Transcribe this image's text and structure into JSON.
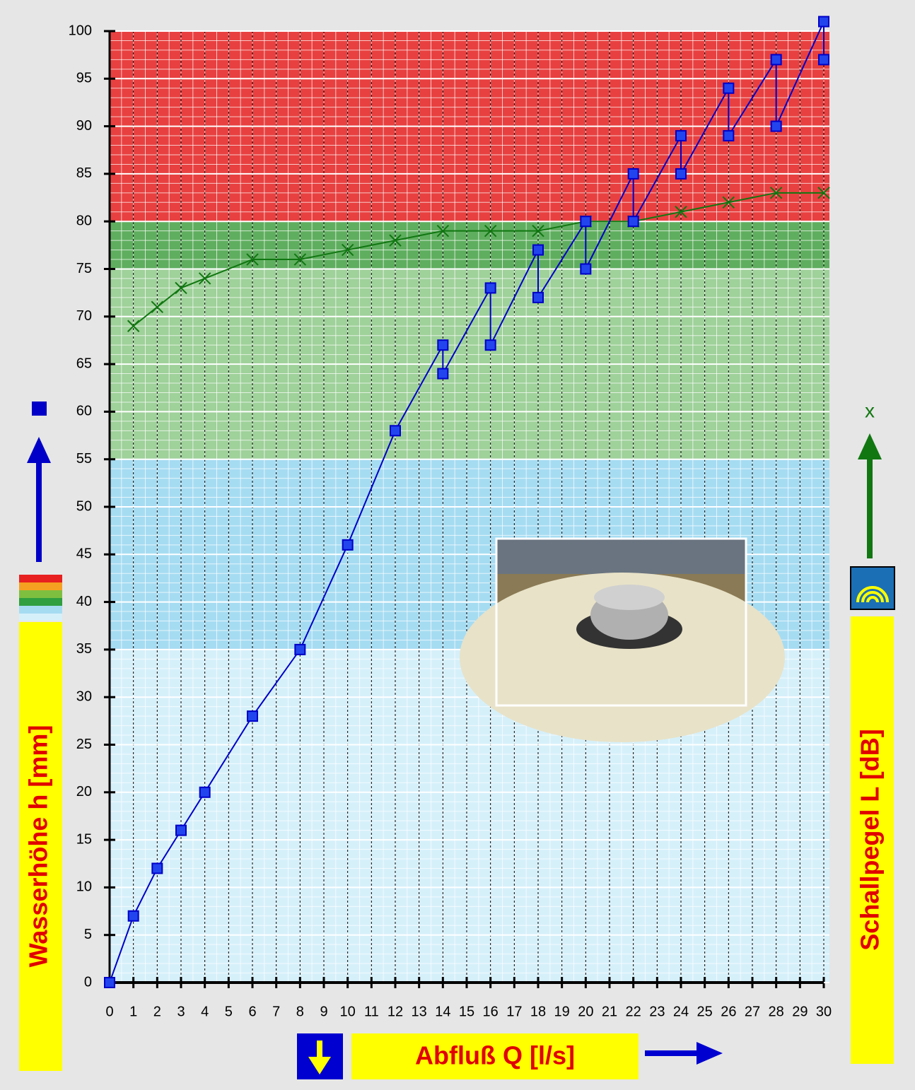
{
  "chart_data": {
    "type": "line",
    "x_label": "Abfluß Q [l/s]",
    "y_label": "Wasserhöhe h [mm]",
    "y2_label": "Schallpegel L [dB]",
    "y2_marker_label": "x",
    "xlim": [
      0,
      30
    ],
    "xticks": [
      0,
      1,
      2,
      3,
      4,
      5,
      6,
      7,
      8,
      9,
      10,
      11,
      12,
      13,
      14,
      15,
      16,
      17,
      18,
      19,
      20,
      21,
      22,
      23,
      24,
      25,
      26,
      27,
      28,
      29,
      30
    ],
    "ylim": [
      0,
      100
    ],
    "yticks": [
      0,
      5,
      10,
      15,
      20,
      25,
      30,
      35,
      40,
      45,
      50,
      55,
      60,
      65,
      70,
      75,
      80,
      85,
      90,
      95,
      100
    ],
    "grid": true,
    "bands": [
      {
        "from": 80,
        "to": 100,
        "color": "#e84040"
      },
      {
        "from": 75,
        "to": 80,
        "color": "#5fae5f"
      },
      {
        "from": 55,
        "to": 75,
        "color": "#9fd19a"
      },
      {
        "from": 35,
        "to": 55,
        "color": "#a6dcf2"
      },
      {
        "from": 0,
        "to": 35,
        "color": "#d6f0fa"
      }
    ],
    "series": [
      {
        "name": "Wasserhöhe h",
        "color": "#0000c8",
        "marker": "square",
        "x": [
          0,
          1,
          2,
          3,
          4,
          6,
          8,
          10,
          12,
          14,
          14,
          16,
          16,
          18,
          18,
          20,
          20,
          22,
          22,
          24,
          24,
          26,
          26,
          28,
          28,
          30,
          30
        ],
        "values": [
          0,
          7,
          12,
          16,
          20,
          28,
          35,
          46,
          58,
          67,
          64,
          73,
          67,
          77,
          72,
          80,
          75,
          85,
          80,
          89,
          85,
          94,
          89,
          97,
          90,
          101,
          97
        ]
      },
      {
        "name": "Schallpegel L",
        "color": "#117711",
        "marker": "cross",
        "x": [
          1,
          2,
          3,
          4,
          6,
          8,
          10,
          12,
          14,
          16,
          18,
          20,
          22,
          24,
          26,
          28,
          30
        ],
        "values": [
          69,
          71,
          73,
          74,
          76,
          76,
          77,
          78,
          79,
          79,
          79,
          80,
          80,
          81,
          82,
          83,
          83
        ]
      }
    ]
  }
}
